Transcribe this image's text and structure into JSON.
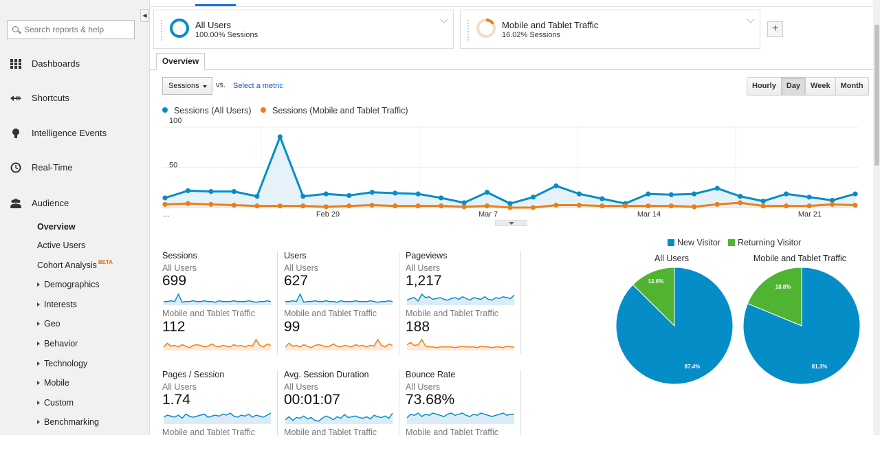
{
  "search": {
    "placeholder": "Search reports & help"
  },
  "sidebar": {
    "items": [
      {
        "label": "Dashboards",
        "icon": "grid-icon"
      },
      {
        "label": "Shortcuts",
        "icon": "shortcut-arrow-icon"
      },
      {
        "label": "Intelligence Events",
        "icon": "lightbulb-icon"
      },
      {
        "label": "Real-Time",
        "icon": "clock-icon"
      },
      {
        "label": "Audience",
        "icon": "people-icon"
      }
    ],
    "sub_items": [
      {
        "label": "Overview"
      },
      {
        "label": "Active Users"
      },
      {
        "label": "Cohort Analysis",
        "badge": "BETA"
      },
      {
        "label": "Demographics"
      },
      {
        "label": "Interests"
      },
      {
        "label": "Geo"
      },
      {
        "label": "Behavior"
      },
      {
        "label": "Technology"
      },
      {
        "label": "Mobile"
      },
      {
        "label": "Custom"
      },
      {
        "label": "Benchmarking"
      }
    ]
  },
  "segments": [
    {
      "title": "All Users",
      "subtitle": "100.00% Sessions",
      "color": "#058dc7"
    },
    {
      "title": "Mobile and Tablet Traffic",
      "subtitle": "16.02% Sessions",
      "color": "#ed7e17"
    }
  ],
  "add_segment": "+",
  "tabs": {
    "overview": "Overview"
  },
  "controls": {
    "metric": "Sessions",
    "vs": "vs.",
    "select_metric": "Select a metric",
    "granularity": [
      "Hourly",
      "Day",
      "Week",
      "Month"
    ],
    "active_granularity": "Day"
  },
  "colors": {
    "all_users": "#058dc7",
    "mobile": "#ed7e17",
    "returning": "#50b432",
    "new": "#058dc7"
  },
  "chart_data": [
    {
      "type": "line",
      "series": [
        {
          "name": "Sessions (All Users)",
          "values": [
            12,
            21,
            20,
            20,
            14,
            88,
            14,
            17,
            15,
            19,
            18,
            17,
            12,
            6,
            19,
            5,
            13,
            27,
            17,
            11,
            5,
            17,
            16,
            17,
            24,
            14,
            8,
            17,
            13,
            9,
            17
          ]
        },
        {
          "name": "Sessions (Mobile and Tablet Traffic)",
          "values": [
            4,
            5,
            4,
            3,
            2,
            2,
            2,
            1,
            2,
            3,
            2,
            2,
            2,
            1,
            2,
            0,
            0,
            3,
            3,
            2,
            2,
            2,
            2,
            1,
            4,
            6,
            2,
            2,
            2,
            4,
            3
          ]
        }
      ],
      "y_ticks": [
        "100",
        "50"
      ],
      "x_ticks": [
        "...",
        "Feb 29",
        "Mar 7",
        "Mar 14",
        "Mar 21"
      ],
      "ylim": [
        0,
        100
      ]
    },
    {
      "type": "pie",
      "title": "All Users",
      "slices": [
        {
          "name": "New Visitor",
          "value": 87.4,
          "label": "87.4%"
        },
        {
          "name": "Returning Visitor",
          "value": 12.6,
          "label": "12.6%"
        }
      ]
    },
    {
      "type": "pie",
      "title": "Mobile and Tablet Traffic",
      "slices": [
        {
          "name": "New Visitor",
          "value": 81.3,
          "label": "81.3%"
        },
        {
          "name": "Returning Visitor",
          "value": 18.8,
          "label": "18.8%"
        }
      ]
    }
  ],
  "pie_legend": [
    "New Visitor",
    "Returning Visitor"
  ],
  "tiles": [
    {
      "name": "Sessions",
      "seg1": "All Users",
      "val1": "699",
      "seg2": "Mobile and Tablet Traffic",
      "val2": "112"
    },
    {
      "name": "Users",
      "seg1": "All Users",
      "val1": "627",
      "seg2": "Mobile and Tablet Traffic",
      "val2": "99"
    },
    {
      "name": "Pageviews",
      "seg1": "All Users",
      "val1": "1,217",
      "seg2": "Mobile and Tablet Traffic",
      "val2": "188"
    },
    {
      "name": "Pages / Session",
      "seg1": "All Users",
      "val1": "1.74",
      "seg2": "Mobile and Tablet Traffic",
      "val2": ""
    },
    {
      "name": "Avg. Session Duration",
      "seg1": "All Users",
      "val1": "00:01:07",
      "seg2": "Mobile and Tablet Traffic",
      "val2": ""
    },
    {
      "name": "Bounce Rate",
      "seg1": "All Users",
      "val1": "73.68%",
      "seg2": "Mobile and Tablet Traffic",
      "val2": ""
    }
  ]
}
